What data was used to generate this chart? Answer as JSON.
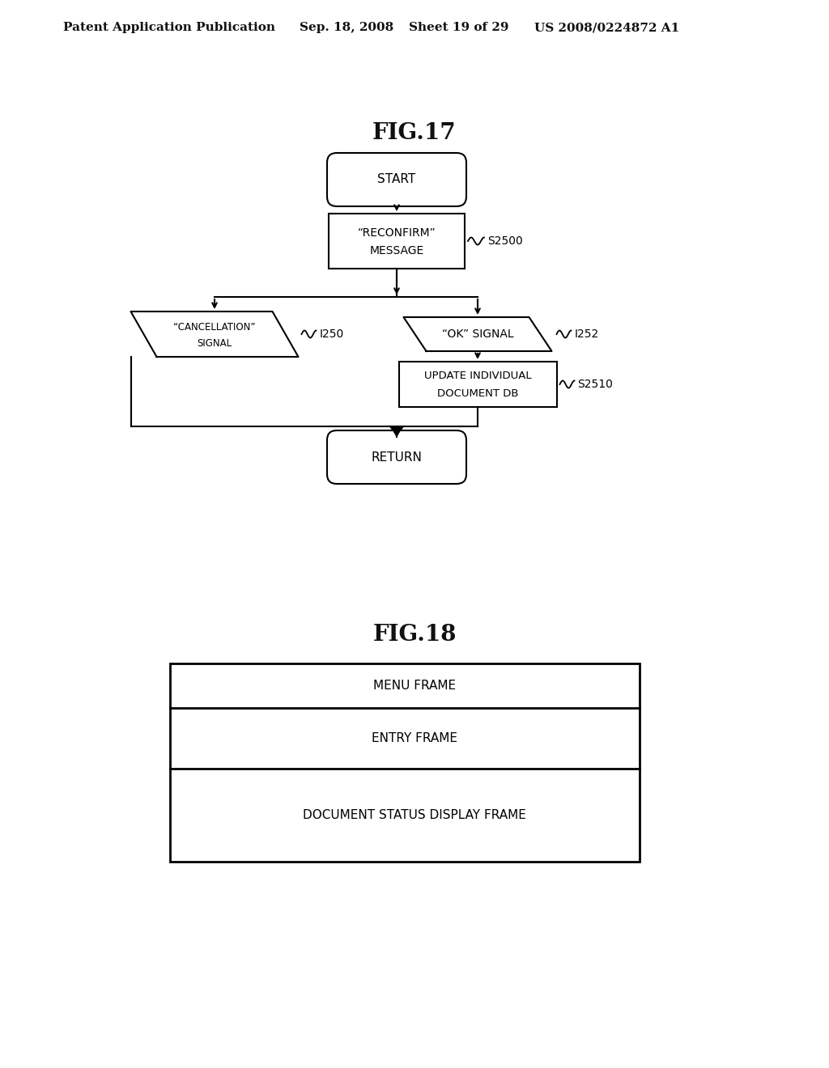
{
  "bg_color": "#ffffff",
  "header_text": "Patent Application Publication",
  "header_date": "Sep. 18, 2008",
  "header_sheet": "Sheet 19 of 29",
  "header_patent": "US 2008/0224872 A1",
  "fig17_title": "FIG.17",
  "fig18_title": "FIG.18",
  "line_color": "#111111",
  "text_color": "#111111"
}
